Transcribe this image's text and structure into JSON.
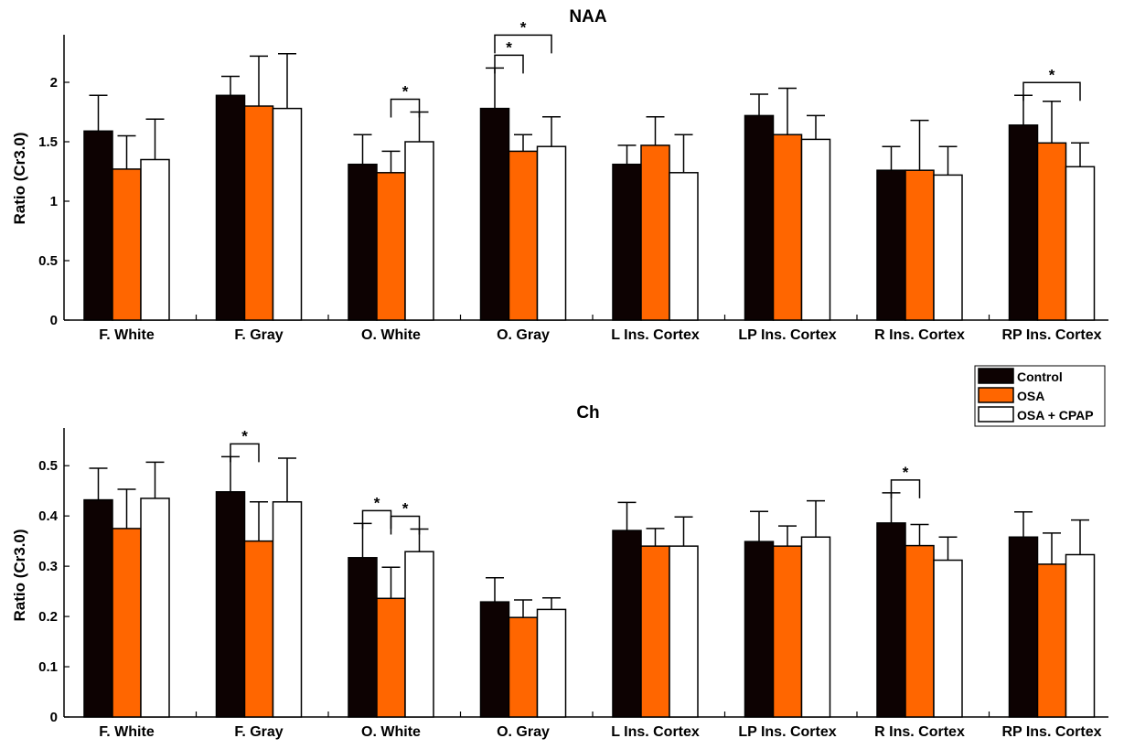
{
  "legend": {
    "entries": [
      {
        "label": "Control",
        "color": "#0d0202"
      },
      {
        "label": "OSA",
        "color": "#ff6600"
      },
      {
        "label": "OSA + CPAP",
        "color": "#ffffff"
      }
    ]
  },
  "chart_data": [
    {
      "type": "bar",
      "title": "NAA",
      "ylabel": "Ratio (Cr3.0)",
      "xlabel": "",
      "ylim": [
        0,
        2.4
      ],
      "yticks": [
        0,
        0.5,
        1,
        1.5,
        2
      ],
      "ytick_labels": [
        "0",
        "0.5",
        "1",
        "1.5",
        "2"
      ],
      "categories": [
        "F. White",
        "F. Gray",
        "O. White",
        "O. Gray",
        "L Ins. Cortex",
        "LP Ins. Cortex",
        "R Ins. Cortex",
        "RP Ins. Cortex"
      ],
      "series": [
        {
          "name": "Control",
          "values": [
            1.59,
            1.89,
            1.31,
            1.78,
            1.31,
            1.72,
            1.26,
            1.64
          ],
          "errors": [
            0.3,
            0.16,
            0.25,
            0.34,
            0.16,
            0.18,
            0.2,
            0.25
          ]
        },
        {
          "name": "OSA",
          "values": [
            1.27,
            1.8,
            1.24,
            1.42,
            1.47,
            1.56,
            1.26,
            1.49
          ],
          "errors": [
            0.28,
            0.42,
            0.18,
            0.14,
            0.24,
            0.39,
            0.42,
            0.35
          ]
        },
        {
          "name": "OSA + CPAP",
          "values": [
            1.35,
            1.78,
            1.5,
            1.46,
            1.24,
            1.52,
            1.22,
            1.29
          ],
          "errors": [
            0.34,
            0.46,
            0.25,
            0.25,
            0.32,
            0.2,
            0.24,
            0.2
          ]
        }
      ],
      "significance": [
        {
          "category": 2,
          "from": 1,
          "to": 2,
          "label": "*"
        },
        {
          "category": 3,
          "from": 0,
          "to": 1,
          "label": "*"
        },
        {
          "category": 3,
          "from": 0,
          "to": 2,
          "label": "*"
        },
        {
          "category": 7,
          "from": 0,
          "to": 2,
          "label": "*"
        }
      ]
    },
    {
      "type": "bar",
      "title": "Ch",
      "ylabel": "Ratio (Cr3.0)",
      "xlabel": "",
      "ylim": [
        0,
        0.575
      ],
      "yticks": [
        0,
        0.1,
        0.2,
        0.3,
        0.4,
        0.5
      ],
      "ytick_labels": [
        "0",
        "0.1",
        "0.2",
        "0.3",
        "0.4",
        "0.5"
      ],
      "categories": [
        "F. White",
        "F. Gray",
        "O. White",
        "O. Gray",
        "L Ins. Cortex",
        "LP Ins. Cortex",
        "R Ins. Cortex",
        "RP Ins. Cortex"
      ],
      "series": [
        {
          "name": "Control",
          "values": [
            0.432,
            0.448,
            0.317,
            0.229,
            0.371,
            0.349,
            0.386,
            0.358
          ],
          "errors": [
            0.063,
            0.07,
            0.068,
            0.048,
            0.056,
            0.06,
            0.06,
            0.05
          ]
        },
        {
          "name": "OSA",
          "values": [
            0.375,
            0.35,
            0.236,
            0.198,
            0.34,
            0.34,
            0.341,
            0.304
          ],
          "errors": [
            0.078,
            0.078,
            0.062,
            0.035,
            0.035,
            0.04,
            0.042,
            0.062
          ]
        },
        {
          "name": "OSA + CPAP",
          "values": [
            0.435,
            0.428,
            0.329,
            0.214,
            0.34,
            0.358,
            0.312,
            0.323
          ],
          "errors": [
            0.072,
            0.087,
            0.045,
            0.023,
            0.058,
            0.072,
            0.046,
            0.069
          ]
        }
      ],
      "significance": [
        {
          "category": 1,
          "from": 0,
          "to": 1,
          "label": "*"
        },
        {
          "category": 2,
          "from": 0,
          "to": 1,
          "label": "*"
        },
        {
          "category": 2,
          "from": 1,
          "to": 2,
          "label": "*"
        },
        {
          "category": 6,
          "from": 0,
          "to": 1,
          "label": "*"
        }
      ]
    }
  ]
}
